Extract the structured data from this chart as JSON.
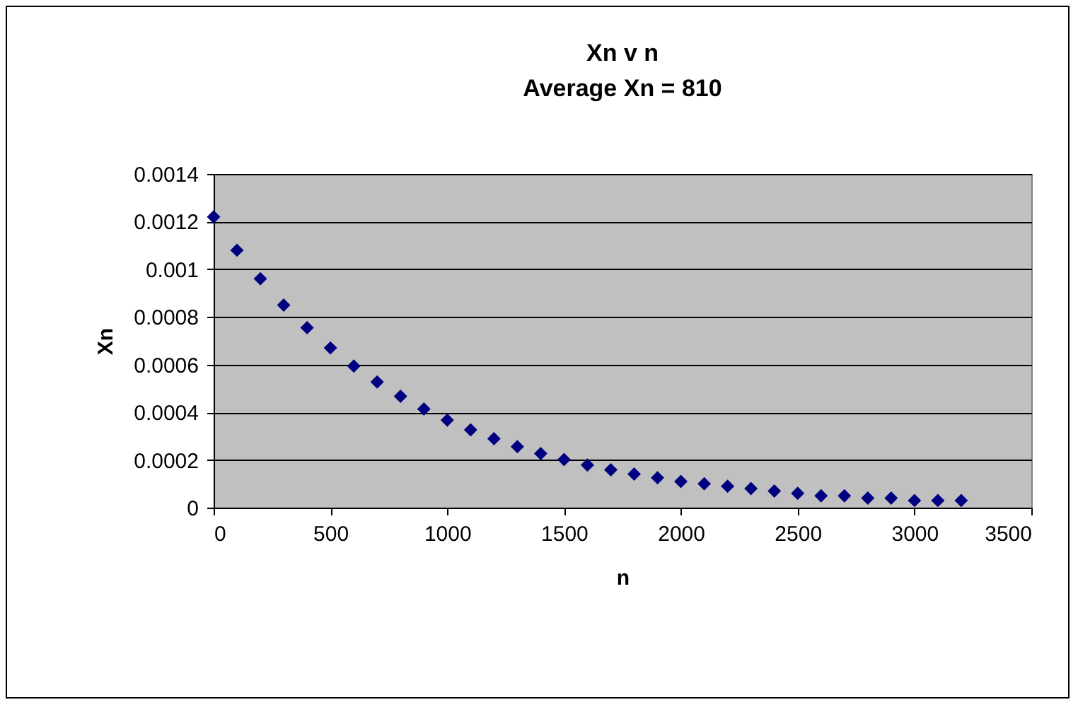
{
  "chart_data": {
    "type": "scatter",
    "title": "Xn v n",
    "subtitle": "Average Xn = 810",
    "xlabel": "n",
    "ylabel": "Xn",
    "x": [
      0,
      100,
      200,
      300,
      400,
      500,
      600,
      700,
      800,
      900,
      1000,
      1100,
      1200,
      1300,
      1400,
      1500,
      1600,
      1700,
      1800,
      1900,
      2000,
      2100,
      2200,
      2300,
      2400,
      2500,
      2600,
      2700,
      2800,
      2900,
      3000,
      3100,
      3200
    ],
    "series": [
      {
        "color": "#000080",
        "values": [
          0.00122,
          0.00108,
          0.00096,
          0.00085,
          0.000755,
          0.00067,
          0.000594,
          0.000527,
          0.000467,
          0.000414,
          0.000367,
          0.000326,
          0.000289,
          0.000256,
          0.000227,
          0.000202,
          0.000179,
          0.000159,
          0.000141,
          0.000125,
          0.00011,
          0.0001,
          9e-05,
          8e-05,
          7e-05,
          6e-05,
          5e-05,
          5e-05,
          4e-05,
          4e-05,
          3e-05,
          3e-05,
          3e-05
        ]
      }
    ],
    "xlim": [
      0,
      3500
    ],
    "xticks": [
      0,
      500,
      1000,
      1500,
      2000,
      2500,
      3000,
      3500
    ],
    "ylim": [
      0,
      0.0014
    ],
    "yticks": [
      0,
      0.0002,
      0.0004,
      0.0006,
      0.0008,
      0.001,
      0.0012,
      0.0014
    ],
    "grid": "y",
    "legend": false,
    "marker": "diamond"
  }
}
